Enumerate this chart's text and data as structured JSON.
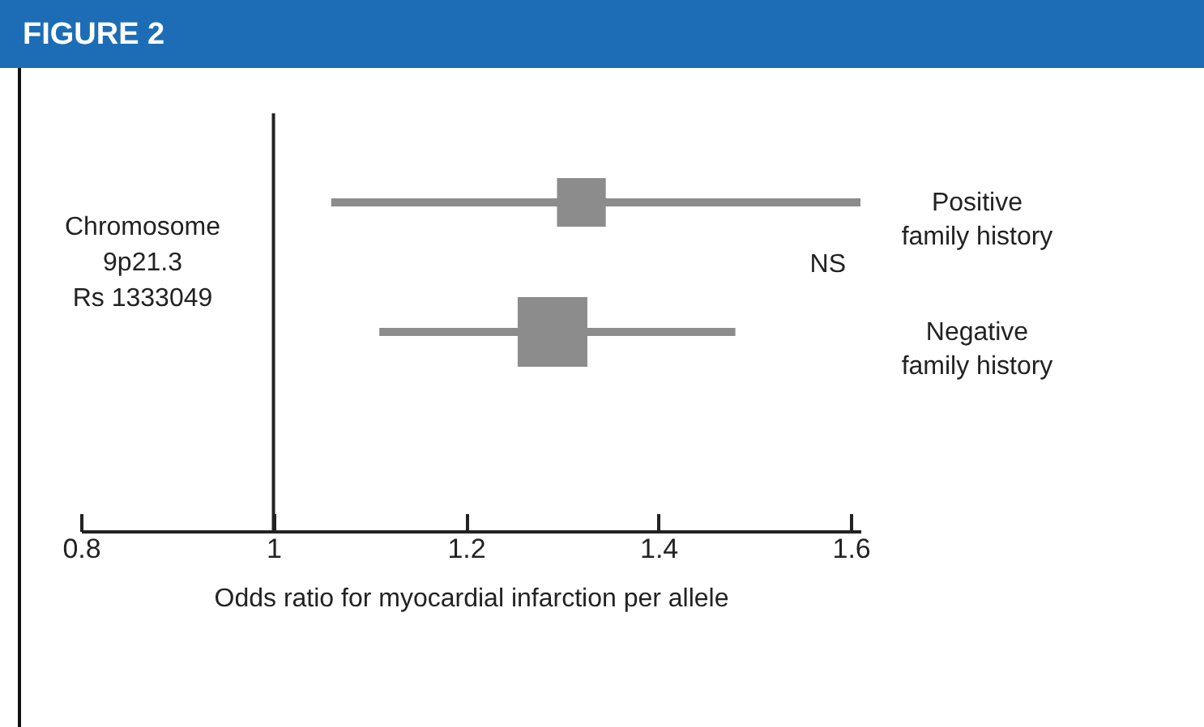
{
  "chart_data": {
    "type": "bubble",
    "title": "FIGURE 2",
    "xlabel": "Odds ratio for myocardial infarction per allele",
    "orientation": "horizontal",
    "categories": [
      "Positive family history",
      "Negative family history"
    ],
    "series": [
      {
        "color": "#8c8c8c",
        "values": [
          1.32,
          1.29
        ],
        "sizes": [
          0.49,
          1
        ],
        "errors": [
          [
            1.06,
            1.61
          ],
          [
            1.11,
            1.48
          ]
        ]
      }
    ],
    "marker": "square",
    "xlim": [
      0.8,
      1.61
    ],
    "xticks": [
      0.8,
      1,
      1.2,
      1.4,
      1.6
    ],
    "ref_lines": [
      {
        "axis": "x",
        "value": 1,
        "color": "#222222"
      }
    ],
    "annotations": [
      "Chromosome\n9p21.3\nRs 1333049",
      "NS"
    ],
    "grid": false,
    "legend": false
  }
}
